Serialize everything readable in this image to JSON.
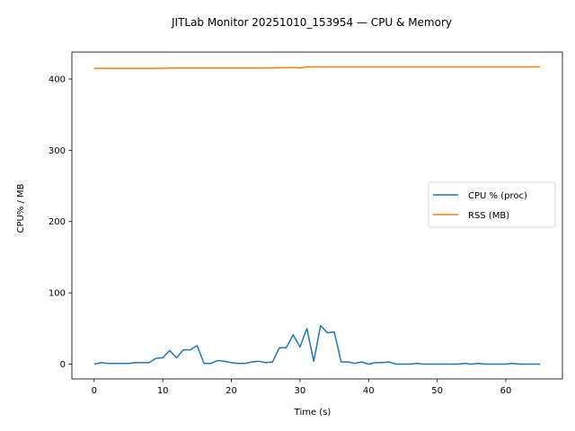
{
  "chart_data": {
    "type": "line",
    "title": "JITLab Monitor 20251010_153954 — CPU & Memory",
    "xlabel": "Time (s)",
    "ylabel": "CPU% / MB",
    "xlim": [
      -3.25,
      68.25
    ],
    "ylim": [
      -20.8,
      437.8
    ],
    "xticks": [
      0,
      10,
      20,
      30,
      40,
      50,
      60
    ],
    "yticks": [
      0,
      100,
      200,
      300,
      400
    ],
    "grid": false,
    "legend_position": "center-right",
    "series": [
      {
        "name": "CPU % (proc)",
        "color": "#1f77b4",
        "x": [
          0,
          1,
          2,
          3,
          4,
          5,
          6,
          7,
          8,
          9,
          10,
          11,
          12,
          13,
          14,
          15,
          16,
          17,
          18,
          19,
          20,
          21,
          22,
          23,
          24,
          25,
          26,
          27,
          28,
          29,
          30,
          31,
          32,
          33,
          34,
          35,
          36,
          37,
          38,
          39,
          40,
          41,
          42,
          43,
          44,
          45,
          46,
          47,
          48,
          49,
          50,
          51,
          52,
          53,
          54,
          55,
          56,
          57,
          58,
          59,
          60,
          61,
          62,
          63,
          64,
          65
        ],
        "y": [
          0,
          2,
          1,
          1,
          1,
          1,
          2,
          2,
          2,
          8,
          9,
          19,
          9,
          20,
          20,
          26,
          1,
          1,
          5,
          4,
          2,
          1,
          1,
          3,
          4,
          2,
          3,
          23,
          23,
          41,
          24,
          50,
          4,
          54,
          44,
          45,
          3,
          3,
          1,
          3,
          0,
          2,
          2,
          3,
          0,
          0,
          0,
          1,
          0,
          0,
          0,
          0,
          0,
          0,
          1,
          0,
          1,
          0,
          0,
          0,
          0,
          1,
          0,
          0,
          0,
          0
        ]
      },
      {
        "name": "RSS (MB)",
        "color": "#ff7f0e",
        "x": [
          0,
          5,
          10,
          11,
          12,
          15,
          20,
          25,
          29,
          30,
          31,
          32,
          35,
          40,
          45,
          50,
          55,
          60,
          65
        ],
        "y": [
          415,
          415,
          415,
          415.5,
          415.5,
          415.5,
          415.5,
          415.5,
          416,
          415.5,
          417,
          417,
          417,
          417,
          417,
          417,
          417,
          417,
          417
        ]
      }
    ]
  }
}
